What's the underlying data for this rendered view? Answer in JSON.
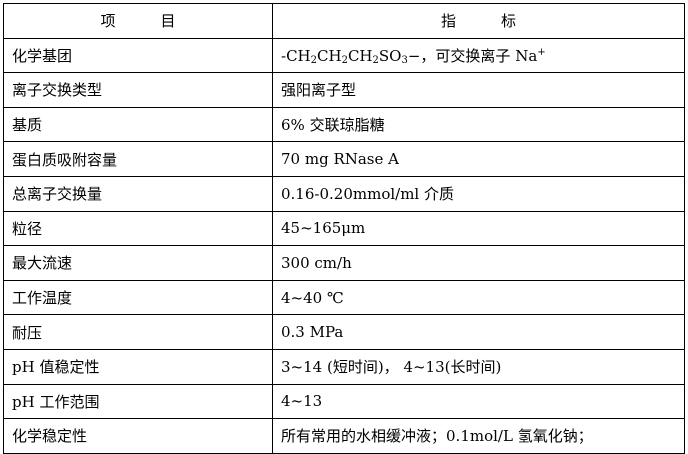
{
  "header": {
    "col1": "项　　　目",
    "col2": "指　　　标"
  },
  "formula_parts": [
    "-CH",
    "2",
    "CH",
    "2",
    "CH",
    "2",
    "SO",
    "3",
    "−",
    "，可交换离子 Na",
    "+"
  ],
  "rows": [
    {
      "item": "化学基团",
      "value": ""
    },
    {
      "item": "离子交换类型",
      "value": "强阳离子型"
    },
    {
      "item": "基质",
      "value": "6%  交联琼脂糖"
    },
    {
      "item": "蛋白质吸附容量",
      "value": "70 mg RNase A"
    },
    {
      "item": "总离子交换量",
      "value": "0.16-0.20mmol/ml  介质"
    },
    {
      "item": "粒径",
      "value": "45~165μm"
    },
    {
      "item": "最大流速",
      "value": "300 cm/h"
    },
    {
      "item": "工作温度",
      "value": "4~40 ℃"
    },
    {
      "item": "耐压",
      "value": "0.3 MPa"
    },
    {
      "item": "pH 值稳定性",
      "value": "3~14 (短时间)，  4~13(长时间)"
    },
    {
      "item": "pH 工作范围",
      "value": "4~13"
    },
    {
      "item": "化学稳定性",
      "value": "所有常用的水相缓冲液；0.1mol/L  氢氧化钠；"
    }
  ]
}
